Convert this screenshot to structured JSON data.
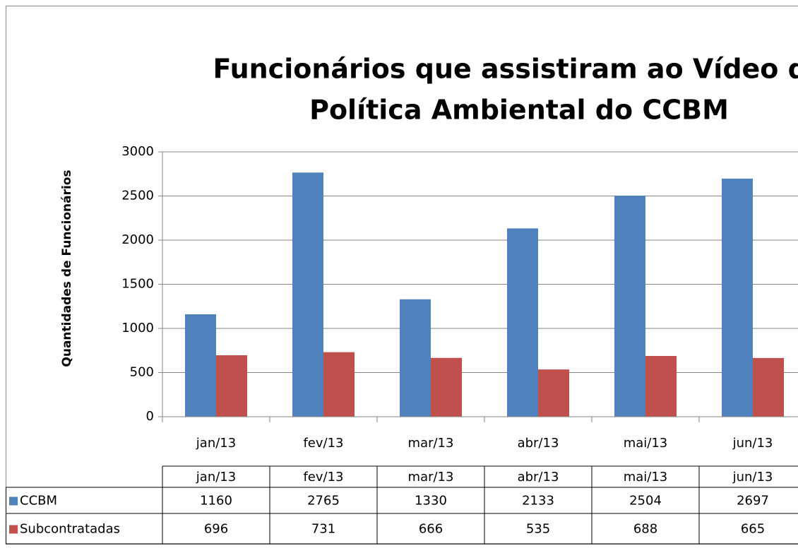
{
  "chart_data": {
    "type": "bar",
    "title": "Funcionários que assistiram ao Vídeo da Política Ambiental do CCBM",
    "title_lines": [
      "Funcionários que assistiram ao Vídeo da",
      "Política Ambiental do CCBM"
    ],
    "y_label": "Quantidades de Funcionários",
    "categories": [
      "jan/13",
      "fev/13",
      "mar/13",
      "abr/13",
      "mai/13",
      "jun/13"
    ],
    "series": [
      {
        "name": "CCBM",
        "color": "#4f81bd",
        "values": [
          1160,
          2765,
          1330,
          2133,
          2504,
          2697
        ]
      },
      {
        "name": "Subcontratadas",
        "color": "#c0504d",
        "values": [
          696,
          731,
          666,
          535,
          688,
          665
        ]
      }
    ],
    "ylim": [
      0,
      3000
    ],
    "yticks": [
      0,
      500,
      1000,
      1500,
      2000,
      2500,
      3000
    ],
    "grid": true,
    "data_table": true
  }
}
